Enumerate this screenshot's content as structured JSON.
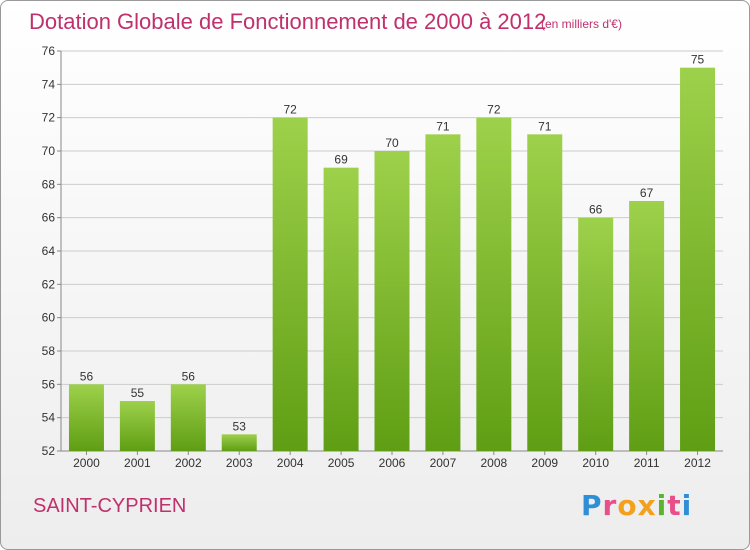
{
  "title": "Dotation Globale de Fonctionnement de 2000 à 2012",
  "unit": "(en milliers d'€)",
  "city": "SAINT-CYPRIEN",
  "logo": {
    "text": "Proxiti"
  },
  "colors": {
    "title": "#c0306d",
    "bar_top": "#9ed14b",
    "bar_bottom": "#5f9e14",
    "grid": "#cccccc",
    "axis_text": "#333333"
  },
  "chart_data": {
    "type": "bar",
    "categories": [
      "2000",
      "2001",
      "2002",
      "2003",
      "2004",
      "2005",
      "2006",
      "2007",
      "2008",
      "2009",
      "2010",
      "2011",
      "2012"
    ],
    "values": [
      56,
      55,
      56,
      53,
      72,
      69,
      70,
      71,
      72,
      71,
      66,
      67,
      75
    ],
    "title": "Dotation Globale de Fonctionnement de 2000 à 2012",
    "xlabel": "",
    "ylabel": "",
    "ylim": [
      52,
      76
    ],
    "yticks": [
      52,
      54,
      56,
      58,
      60,
      62,
      64,
      66,
      68,
      70,
      72,
      74,
      76
    ],
    "grid": true,
    "data_labels": true
  }
}
